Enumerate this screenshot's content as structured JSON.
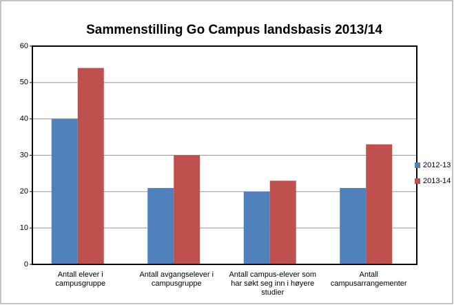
{
  "chart_data": {
    "type": "bar",
    "title": "Sammenstilling Go Campus landsbasis 2013/14",
    "categories": [
      "Antall elever i campusgruppe",
      "Antall avgangselever i campusgruppe",
      "Antall campus-elever som har søkt seg inn i høyere studier",
      "Antall campusarrangementer"
    ],
    "series": [
      {
        "name": "2012-13",
        "color": "#4f81bd",
        "values": [
          40,
          21,
          20,
          21
        ]
      },
      {
        "name": "2013-14",
        "color": "#c0504d",
        "values": [
          54,
          30,
          23,
          33
        ]
      }
    ],
    "ylim": [
      0,
      60
    ],
    "yticks": [
      0,
      10,
      20,
      30,
      40,
      50,
      60
    ],
    "grid": true,
    "legend": "right"
  }
}
